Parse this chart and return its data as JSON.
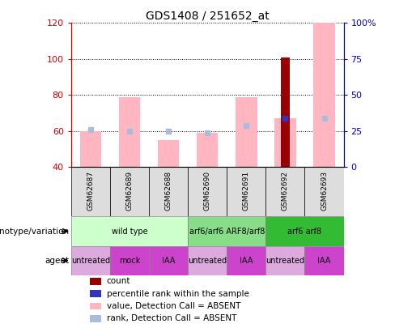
{
  "title": "GDS1408 / 251652_at",
  "samples": [
    "GSM62687",
    "GSM62689",
    "GSM62688",
    "GSM62690",
    "GSM62691",
    "GSM62692",
    "GSM62693"
  ],
  "ylim_left": [
    40,
    120
  ],
  "ylim_right": [
    0,
    100
  ],
  "yticks_left": [
    40,
    60,
    80,
    100,
    120
  ],
  "yticks_right": [
    0,
    25,
    50,
    75,
    100
  ],
  "ytick_labels_right": [
    "0",
    "25",
    "50",
    "75",
    "100%"
  ],
  "bar_bottom": 40,
  "pink_bar_tops": [
    60,
    79,
    55,
    59,
    79,
    67,
    120
  ],
  "red_bar_tops": [
    40,
    40,
    40,
    40,
    40,
    101,
    40
  ],
  "blue_dot_y": [
    61,
    60,
    60,
    59,
    63,
    67,
    67
  ],
  "blue_dot_solid": [
    false,
    false,
    false,
    false,
    false,
    true,
    false
  ],
  "pink_bar_color": "#FFB6C1",
  "red_bar_color": "#990000",
  "blue_dot_color": "#3333BB",
  "light_blue_dot_color": "#AABBDD",
  "sample_bar_width": 0.55,
  "red_bar_width": 0.22,
  "genotype_groups": [
    {
      "label": "wild type",
      "start": 0,
      "end": 2,
      "color": "#CCFFCC"
    },
    {
      "label": "arf6/arf6 ARF8/arf8",
      "start": 3,
      "end": 4,
      "color": "#88DD88"
    },
    {
      "label": "arf6 arf8",
      "start": 5,
      "end": 6,
      "color": "#33BB33"
    }
  ],
  "agent_groups": [
    {
      "label": "untreated",
      "start": 0,
      "end": 0,
      "color": "#DDAADD"
    },
    {
      "label": "mock",
      "start": 1,
      "end": 1,
      "color": "#CC44CC"
    },
    {
      "label": "IAA",
      "start": 2,
      "end": 2,
      "color": "#CC44CC"
    },
    {
      "label": "untreated",
      "start": 3,
      "end": 3,
      "color": "#DDAADD"
    },
    {
      "label": "IAA",
      "start": 4,
      "end": 4,
      "color": "#CC44CC"
    },
    {
      "label": "untreated",
      "start": 5,
      "end": 5,
      "color": "#DDAADD"
    },
    {
      "label": "IAA",
      "start": 6,
      "end": 6,
      "color": "#CC44CC"
    }
  ],
  "legend_items": [
    {
      "label": "count",
      "color": "#990000"
    },
    {
      "label": "percentile rank within the sample",
      "color": "#3333BB"
    },
    {
      "label": "value, Detection Call = ABSENT",
      "color": "#FFB6C1"
    },
    {
      "label": "rank, Detection Call = ABSENT",
      "color": "#AABBDD"
    }
  ],
  "left_tick_color": "#CC0000",
  "right_tick_color": "#0000CC",
  "sample_box_color": "#DDDDDD",
  "grid_color": "black",
  "grid_style": ":"
}
